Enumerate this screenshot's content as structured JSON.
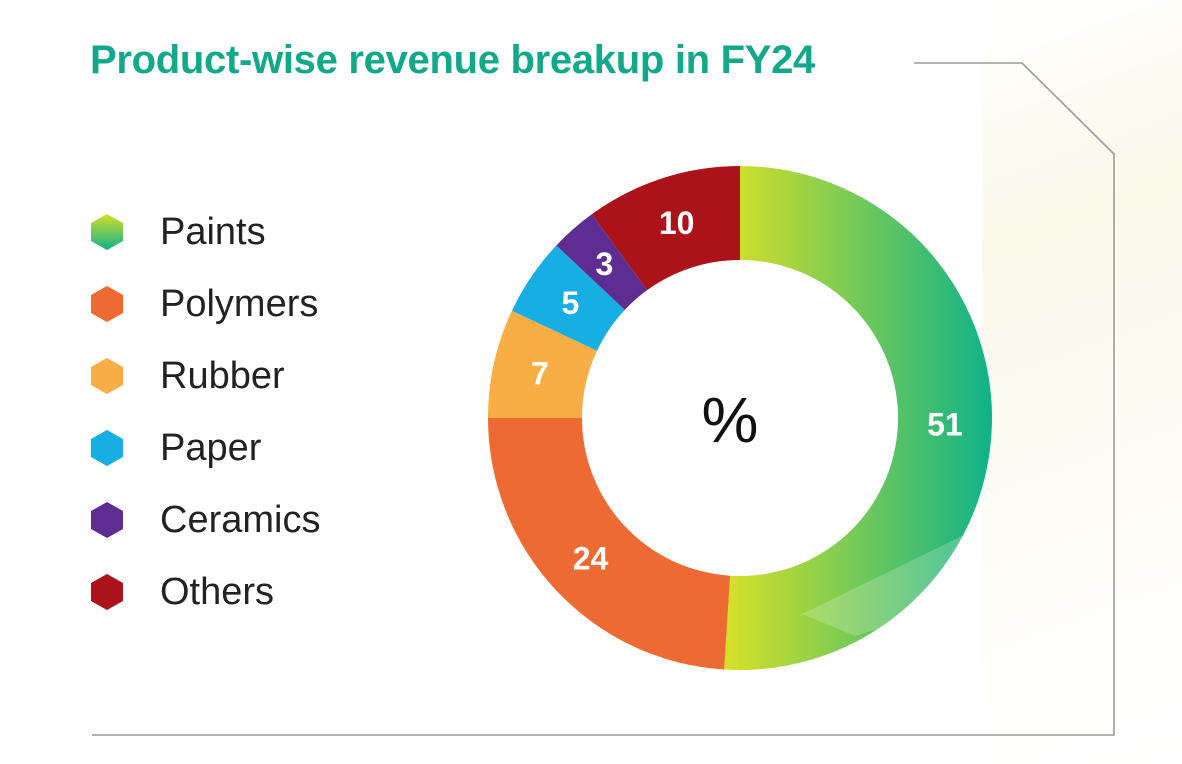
{
  "chart_data": {
    "type": "pie",
    "title": "Product-wise revenue breakup in FY24",
    "center_label": "%",
    "legend_position": "left",
    "series": [
      {
        "name": "Paints",
        "value": 51,
        "color": "#5cc06e",
        "gradient": [
          "#d3e02a",
          "#0fb28a"
        ]
      },
      {
        "name": "Polymers",
        "value": 24,
        "color": "#ee6a33"
      },
      {
        "name": "Rubber",
        "value": 7,
        "color": "#f9ad45"
      },
      {
        "name": "Paper",
        "value": 5,
        "color": "#17aee4"
      },
      {
        "name": "Ceramics",
        "value": 3,
        "color": "#5e2d91"
      },
      {
        "name": "Others",
        "value": 10,
        "color": "#ab1219"
      }
    ]
  }
}
